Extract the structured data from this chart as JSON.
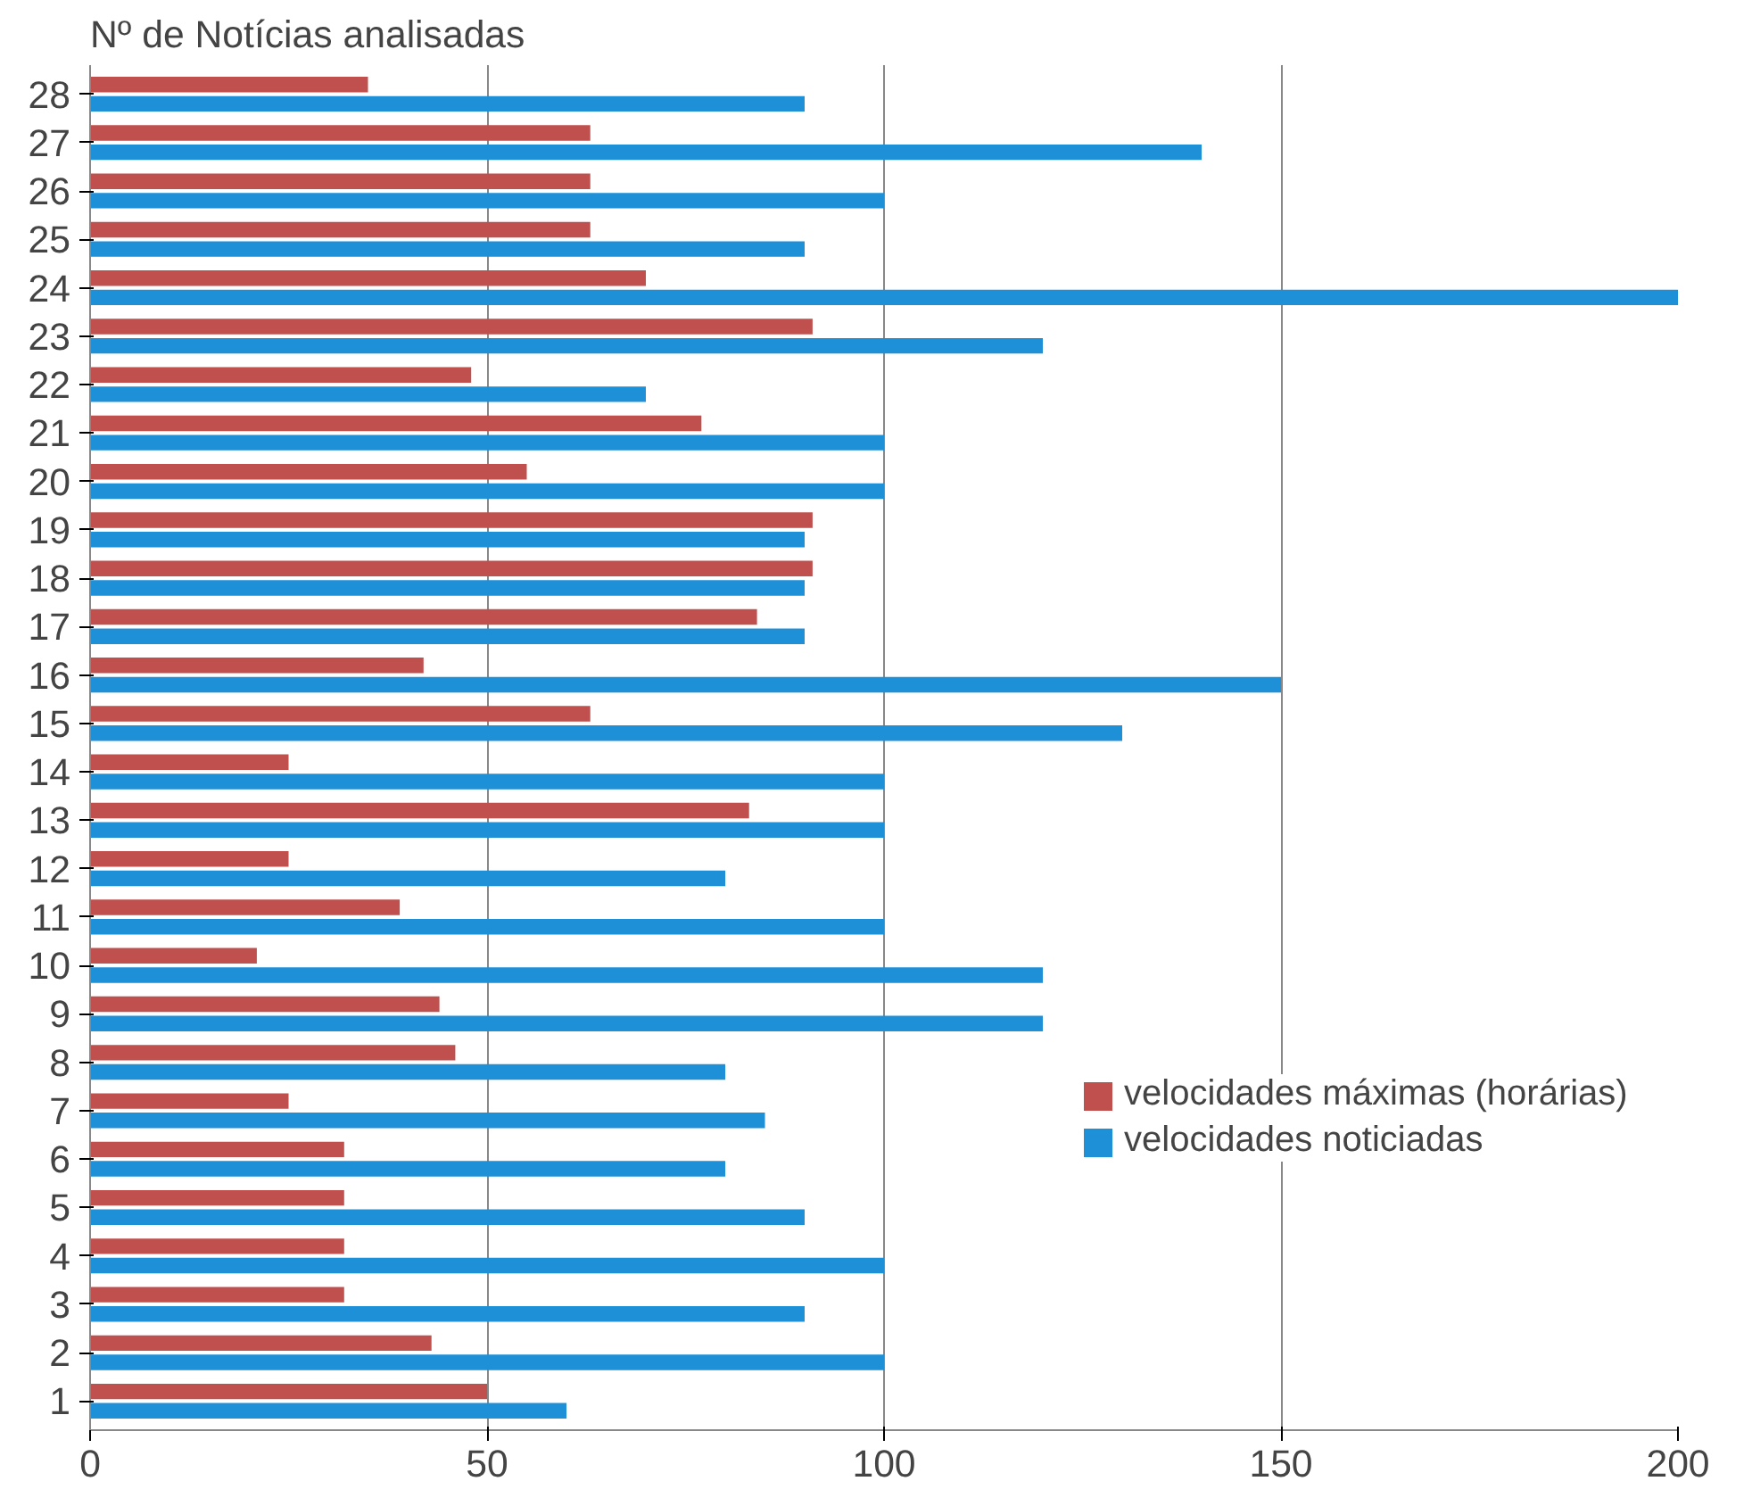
{
  "chart_data": {
    "type": "bar",
    "orientation": "horizontal",
    "ylabel": "Nº de Notícias analisadas",
    "categories": [
      "28",
      "27",
      "26",
      "25",
      "24",
      "23",
      "22",
      "21",
      "20",
      "19",
      "18",
      "17",
      "16",
      "15",
      "14",
      "13",
      "12",
      "11",
      "10",
      "9",
      "8",
      "7",
      "6",
      "5",
      "4",
      "3",
      "2",
      "1"
    ],
    "series": [
      {
        "name": "velocidades máximas (horárias)",
        "color": "#c0504d",
        "values": [
          35,
          63,
          63,
          63,
          70,
          91,
          48,
          77,
          55,
          91,
          91,
          84,
          42,
          63,
          25,
          83,
          25,
          39,
          21,
          44,
          46,
          25,
          32,
          32,
          32,
          32,
          43,
          50
        ]
      },
      {
        "name": "velocidades noticiadas",
        "color": "#1e90d8",
        "values": [
          90,
          140,
          100,
          90,
          200,
          120,
          70,
          100,
          100,
          90,
          90,
          90,
          150,
          130,
          100,
          100,
          80,
          100,
          120,
          120,
          80,
          85,
          80,
          90,
          100,
          90,
          100,
          60
        ]
      }
    ],
    "xlim": [
      0,
      200
    ],
    "xticks": [
      0,
      50,
      100,
      150,
      200
    ],
    "grid": "x",
    "legend": "right"
  }
}
